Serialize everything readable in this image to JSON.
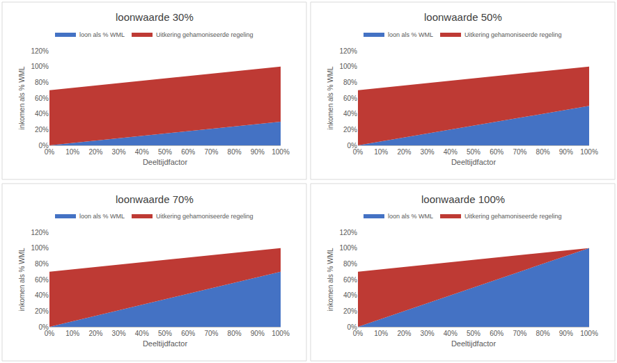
{
  "chart_data": [
    {
      "type": "area",
      "title": "loonwaarde 30%",
      "x_label": "Deeltijdfactor",
      "y_label": "inkomen als % WML",
      "stacked": true,
      "grid": false,
      "legend": "top",
      "x": [
        0,
        10,
        20,
        30,
        40,
        50,
        60,
        70,
        80,
        90,
        100
      ],
      "xlim": [
        0,
        100
      ],
      "xticks": [
        {
          "value": 0,
          "label": "0%"
        },
        {
          "value": 10,
          "label": "10%"
        },
        {
          "value": 20,
          "label": "20%"
        },
        {
          "value": 30,
          "label": "30%"
        },
        {
          "value": 40,
          "label": "40%"
        },
        {
          "value": 50,
          "label": "50%"
        },
        {
          "value": 60,
          "label": "60%"
        },
        {
          "value": 70,
          "label": "70%"
        },
        {
          "value": 80,
          "label": "80%"
        },
        {
          "value": 90,
          "label": "90%"
        },
        {
          "value": 100,
          "label": "100%"
        }
      ],
      "ylim": [
        0,
        120
      ],
      "yticks": [
        {
          "value": 0,
          "label": "0%"
        },
        {
          "value": 20,
          "label": "20%"
        },
        {
          "value": 40,
          "label": "40%"
        },
        {
          "value": 60,
          "label": "60%"
        },
        {
          "value": 80,
          "label": "80%"
        },
        {
          "value": 100,
          "label": "100%"
        },
        {
          "value": 120,
          "label": "120%"
        }
      ],
      "series": [
        {
          "name": "loon als % WML",
          "color": "#4472c4",
          "values": [
            0,
            3,
            6,
            9,
            12,
            15,
            18,
            21,
            24,
            27,
            30
          ]
        },
        {
          "name": "Uitkering gehamoniseerde regeling",
          "color": "#be3a34",
          "values": [
            70,
            70,
            70,
            70,
            70,
            70,
            70,
            70,
            70,
            70,
            70
          ]
        }
      ]
    },
    {
      "type": "area",
      "title": "loonwaarde 50%",
      "x_label": "Deeltijdfactor",
      "y_label": "inkomen als % WML",
      "stacked": true,
      "grid": false,
      "legend": "top",
      "x": [
        0,
        10,
        20,
        30,
        40,
        50,
        60,
        70,
        80,
        90,
        100
      ],
      "xlim": [
        0,
        100
      ],
      "xticks": [
        {
          "value": 0,
          "label": "0%"
        },
        {
          "value": 10,
          "label": "10%"
        },
        {
          "value": 20,
          "label": "20%"
        },
        {
          "value": 30,
          "label": "30%"
        },
        {
          "value": 40,
          "label": "40%"
        },
        {
          "value": 50,
          "label": "50%"
        },
        {
          "value": 60,
          "label": "60%"
        },
        {
          "value": 70,
          "label": "70%"
        },
        {
          "value": 80,
          "label": "80%"
        },
        {
          "value": 90,
          "label": "90%"
        },
        {
          "value": 100,
          "label": "100%"
        }
      ],
      "ylim": [
        0,
        120
      ],
      "yticks": [
        {
          "value": 0,
          "label": "0%"
        },
        {
          "value": 20,
          "label": "20%"
        },
        {
          "value": 40,
          "label": "40%"
        },
        {
          "value": 60,
          "label": "60%"
        },
        {
          "value": 80,
          "label": "80%"
        },
        {
          "value": 100,
          "label": "100%"
        },
        {
          "value": 120,
          "label": "120%"
        }
      ],
      "series": [
        {
          "name": "loon als % WML",
          "color": "#4472c4",
          "values": [
            0,
            5,
            10,
            15,
            20,
            25,
            30,
            35,
            40,
            45,
            50
          ]
        },
        {
          "name": "Uitkering gehamoniseerde regeling",
          "color": "#be3a34",
          "values": [
            70,
            68,
            66,
            64,
            62,
            60,
            58,
            56,
            54,
            52,
            50
          ]
        }
      ]
    },
    {
      "type": "area",
      "title": "loonwaarde 70%",
      "x_label": "Deeltijdfactor",
      "y_label": "inkomen als % WML",
      "stacked": true,
      "grid": false,
      "legend": "top",
      "x": [
        0,
        10,
        20,
        30,
        40,
        50,
        60,
        70,
        80,
        90,
        100
      ],
      "xlim": [
        0,
        100
      ],
      "xticks": [
        {
          "value": 0,
          "label": "0%"
        },
        {
          "value": 10,
          "label": "10%"
        },
        {
          "value": 20,
          "label": "20%"
        },
        {
          "value": 30,
          "label": "30%"
        },
        {
          "value": 40,
          "label": "40%"
        },
        {
          "value": 50,
          "label": "50%"
        },
        {
          "value": 60,
          "label": "60%"
        },
        {
          "value": 70,
          "label": "70%"
        },
        {
          "value": 80,
          "label": "80%"
        },
        {
          "value": 90,
          "label": "90%"
        },
        {
          "value": 100,
          "label": "100%"
        }
      ],
      "ylim": [
        0,
        120
      ],
      "yticks": [
        {
          "value": 0,
          "label": "0%"
        },
        {
          "value": 20,
          "label": "20%"
        },
        {
          "value": 40,
          "label": "40%"
        },
        {
          "value": 60,
          "label": "60%"
        },
        {
          "value": 80,
          "label": "80%"
        },
        {
          "value": 100,
          "label": "100%"
        },
        {
          "value": 120,
          "label": "120%"
        }
      ],
      "series": [
        {
          "name": "loon als % WML",
          "color": "#4472c4",
          "values": [
            0,
            7,
            14,
            21,
            28,
            35,
            42,
            49,
            56,
            63,
            70
          ]
        },
        {
          "name": "Uitkering gehamoniseerde regeling",
          "color": "#be3a34",
          "values": [
            70,
            66,
            62,
            58,
            54,
            50,
            46,
            42,
            38,
            34,
            30
          ]
        }
      ]
    },
    {
      "type": "area",
      "title": "loonwaarde 100%",
      "x_label": "Deeltijdfactor",
      "y_label": "inkomen als % WML",
      "stacked": true,
      "grid": false,
      "legend": "top",
      "x": [
        0,
        10,
        20,
        30,
        40,
        50,
        60,
        70,
        80,
        90,
        100
      ],
      "xlim": [
        0,
        100
      ],
      "xticks": [
        {
          "value": 0,
          "label": "0%"
        },
        {
          "value": 10,
          "label": "10%"
        },
        {
          "value": 20,
          "label": "20%"
        },
        {
          "value": 30,
          "label": "30%"
        },
        {
          "value": 40,
          "label": "40%"
        },
        {
          "value": 50,
          "label": "50%"
        },
        {
          "value": 60,
          "label": "60%"
        },
        {
          "value": 70,
          "label": "70%"
        },
        {
          "value": 80,
          "label": "80%"
        },
        {
          "value": 90,
          "label": "90%"
        },
        {
          "value": 100,
          "label": "100%"
        }
      ],
      "ylim": [
        0,
        120
      ],
      "yticks": [
        {
          "value": 0,
          "label": "0%"
        },
        {
          "value": 20,
          "label": "20%"
        },
        {
          "value": 40,
          "label": "40%"
        },
        {
          "value": 60,
          "label": "60%"
        },
        {
          "value": 80,
          "label": "80%"
        },
        {
          "value": 100,
          "label": "100%"
        },
        {
          "value": 120,
          "label": "120%"
        }
      ],
      "series": [
        {
          "name": "loon als % WML",
          "color": "#4472c4",
          "values": [
            0,
            10,
            20,
            30,
            40,
            50,
            60,
            70,
            80,
            90,
            100
          ]
        },
        {
          "name": "Uitkering gehamoniseerde regeling",
          "color": "#be3a34",
          "values": [
            70,
            63,
            56,
            49,
            42,
            35,
            28,
            21,
            14,
            7,
            0
          ]
        }
      ]
    }
  ]
}
